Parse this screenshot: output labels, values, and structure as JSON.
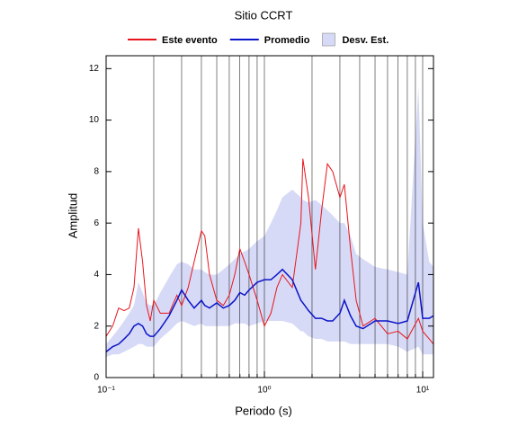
{
  "chart_data": {
    "type": "line",
    "title": "Sitio CCRT",
    "x_label": "Periodo (s)",
    "y_label": "Amplitud",
    "x": [
      0.1,
      0.11,
      0.12,
      0.13,
      0.14,
      0.15,
      0.16,
      0.17,
      0.18,
      0.19,
      0.2,
      0.22,
      0.25,
      0.28,
      0.3,
      0.33,
      0.36,
      0.4,
      0.42,
      0.45,
      0.5,
      0.55,
      0.6,
      0.65,
      0.7,
      0.75,
      0.8,
      0.9,
      1.0,
      1.1,
      1.2,
      1.3,
      1.5,
      1.7,
      1.75,
      1.9,
      2.1,
      2.3,
      2.5,
      2.7,
      3.0,
      3.2,
      3.5,
      3.8,
      4.2,
      5,
      6,
      7,
      8,
      9.4,
      10,
      11,
      11.7
    ],
    "series": [
      {
        "name": "Este evento",
        "color": "#e8141c",
        "values": [
          1.6,
          2.0,
          2.7,
          2.6,
          2.7,
          3.5,
          5.8,
          4.5,
          2.8,
          2.2,
          3.0,
          2.5,
          2.5,
          3.2,
          2.8,
          3.5,
          4.5,
          5.7,
          5.5,
          4.0,
          3.0,
          2.8,
          3.2,
          4.0,
          5.0,
          4.5,
          4.0,
          3.0,
          2.0,
          2.5,
          3.5,
          4.0,
          3.5,
          6.0,
          8.5,
          7.0,
          4.2,
          6.5,
          8.3,
          8.0,
          7.0,
          7.5,
          5.0,
          3.0,
          2.0,
          2.3,
          1.7,
          1.8,
          1.5,
          2.3,
          1.8,
          1.5,
          1.3
        ]
      },
      {
        "name": "Promedio",
        "color": "#0a14c8",
        "values": [
          1.0,
          1.2,
          1.3,
          1.5,
          1.7,
          2.0,
          2.1,
          2.0,
          1.7,
          1.6,
          1.6,
          1.9,
          2.4,
          3.0,
          3.4,
          3.0,
          2.7,
          3.0,
          2.8,
          2.7,
          2.9,
          2.7,
          2.8,
          3.0,
          3.3,
          3.2,
          3.4,
          3.7,
          3.8,
          3.8,
          4.0,
          4.2,
          3.8,
          3.0,
          2.9,
          2.6,
          2.3,
          2.3,
          2.2,
          2.2,
          2.5,
          3.0,
          2.4,
          2.0,
          1.9,
          2.2,
          2.2,
          2.1,
          2.2,
          3.7,
          2.3,
          2.3,
          2.4
        ]
      },
      {
        "name": "Desv. Est.",
        "color": "#d7daf6",
        "band": true,
        "upper": [
          1.3,
          1.6,
          1.9,
          2.2,
          2.5,
          2.8,
          3.7,
          3.3,
          2.9,
          2.8,
          2.8,
          3.3,
          3.9,
          4.4,
          4.5,
          4.4,
          4.2,
          4.2,
          4.1,
          4.0,
          4.0,
          4.2,
          4.4,
          4.6,
          4.8,
          4.9,
          5.0,
          5.3,
          5.5,
          6.0,
          6.5,
          7.0,
          7.3,
          7.0,
          6.9,
          6.8,
          6.9,
          6.7,
          6.5,
          6.3,
          6.0,
          6.0,
          5.5,
          4.8,
          4.6,
          4.3,
          4.2,
          4.1,
          4.0,
          11.3,
          6.0,
          4.5,
          4.3
        ],
        "lower": [
          0.8,
          0.9,
          0.9,
          1.0,
          1.1,
          1.2,
          1.3,
          1.3,
          1.2,
          1.2,
          1.2,
          1.5,
          1.8,
          2.1,
          2.2,
          2.1,
          2.0,
          2.1,
          2.0,
          2.0,
          2.0,
          2.0,
          2.0,
          2.1,
          2.1,
          2.1,
          2.0,
          2.1,
          2.2,
          2.2,
          2.2,
          2.2,
          2.1,
          1.8,
          1.8,
          1.6,
          1.5,
          1.5,
          1.4,
          1.4,
          1.4,
          1.4,
          1.3,
          1.3,
          1.3,
          1.3,
          1.3,
          1.2,
          1.0,
          1.2,
          0.9,
          0.9,
          0.9
        ]
      }
    ],
    "xscale": "log",
    "xlim": [
      0.1,
      11.7
    ],
    "ylim": [
      0,
      12.5
    ],
    "xticks": [
      {
        "value": 0.1,
        "label": "10⁻¹"
      },
      {
        "value": 1,
        "label": "10⁰"
      },
      {
        "value": 10,
        "label": "10¹"
      }
    ],
    "xminorticks": [
      0.2,
      0.3,
      0.4,
      0.5,
      0.6,
      0.7,
      0.8,
      0.9,
      2,
      3,
      4,
      5,
      6,
      7,
      8,
      9
    ],
    "yticks": [
      0,
      2,
      4,
      6,
      8,
      10,
      12
    ],
    "xgrid": true,
    "legend": "top"
  }
}
